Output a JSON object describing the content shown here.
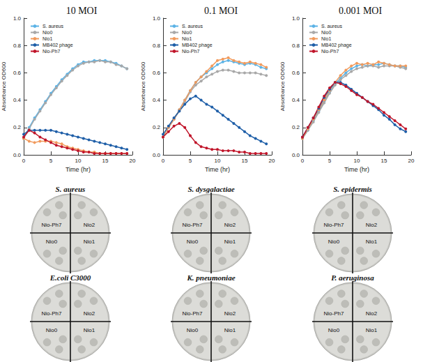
{
  "chart_data": [
    {
      "type": "line",
      "title": "10 MOI",
      "x_label": "Time (hr)",
      "y_label": "Absorbance OD600",
      "x": [
        0,
        1,
        2,
        3,
        4,
        5,
        6,
        7,
        8,
        9,
        10,
        11,
        12,
        13,
        14,
        15,
        16,
        17,
        18,
        19
      ],
      "xlim": [
        0,
        20
      ],
      "xticks": [
        0,
        5,
        10,
        15,
        20
      ],
      "ylim": [
        0,
        1
      ],
      "yticks": [
        {
          "value": 0,
          "label": "0.0"
        },
        0.2,
        0.4,
        0.6,
        0.8,
        {
          "value": 1,
          "label": "1.0"
        }
      ],
      "grid": false,
      "legend": "upper left",
      "marker": "circle",
      "series": [
        {
          "name": "S. aureus",
          "color": "#5cb3e6",
          "values": [
            0.12,
            0.2,
            0.27,
            0.33,
            0.39,
            0.45,
            0.5,
            0.55,
            0.59,
            0.63,
            0.66,
            0.68,
            0.68,
            0.69,
            0.69,
            0.69,
            0.68,
            0.67,
            0.65,
            0.63
          ]
        },
        {
          "name": "Nio0",
          "color": "#a8a8a8",
          "values": [
            0.12,
            0.19,
            0.26,
            0.32,
            0.38,
            0.44,
            0.49,
            0.54,
            0.58,
            0.62,
            0.65,
            0.67,
            0.68,
            0.68,
            0.69,
            0.68,
            0.68,
            0.66,
            0.65,
            0.63
          ]
        },
        {
          "name": "Nio1",
          "color": "#f19a5c",
          "values": [
            0.12,
            0.1,
            0.09,
            0.1,
            0.1,
            0.1,
            0.09,
            0.08,
            0.06,
            0.05,
            0.04,
            0.03,
            0.02,
            0.02,
            0.01,
            0.01,
            0.01,
            0.01,
            0.01,
            0.01
          ]
        },
        {
          "name": "MB402 phage",
          "color": "#1f5fa8",
          "values": [
            0.15,
            0.18,
            0.18,
            0.18,
            0.18,
            0.18,
            0.17,
            0.16,
            0.15,
            0.14,
            0.13,
            0.12,
            0.11,
            0.1,
            0.09,
            0.08,
            0.07,
            0.06,
            0.05,
            0.04
          ]
        },
        {
          "name": "Nio-Ph7",
          "color": "#c0152a",
          "values": [
            0.13,
            0.18,
            0.16,
            0.13,
            0.11,
            0.09,
            0.07,
            0.06,
            0.05,
            0.04,
            0.03,
            0.02,
            0.02,
            0.01,
            0.01,
            0.01,
            0.01,
            0.01,
            0.01,
            0.01
          ]
        }
      ]
    },
    {
      "type": "line",
      "title": "0.1 MOI",
      "x_label": "Time (hr)",
      "y_label": "Absorbance OD600",
      "x": [
        0,
        1,
        2,
        3,
        4,
        5,
        6,
        7,
        8,
        9,
        10,
        11,
        12,
        13,
        14,
        15,
        16,
        17,
        18,
        19
      ],
      "xlim": [
        0,
        20
      ],
      "xticks": [
        0,
        5,
        10,
        15,
        20
      ],
      "ylim": [
        0,
        1
      ],
      "yticks": [
        {
          "value": 0,
          "label": "0.0"
        },
        0.2,
        0.4,
        0.6,
        0.8,
        {
          "value": 1,
          "label": "1.0"
        }
      ],
      "grid": false,
      "legend": "upper left",
      "marker": "circle",
      "series": [
        {
          "name": "S. aureus",
          "color": "#5cb3e6",
          "values": [
            0.13,
            0.2,
            0.26,
            0.33,
            0.4,
            0.47,
            0.53,
            0.57,
            0.6,
            0.63,
            0.66,
            0.68,
            0.69,
            0.68,
            0.67,
            0.66,
            0.67,
            0.66,
            0.64,
            0.63
          ]
        },
        {
          "name": "Nio0",
          "color": "#a8a8a8",
          "values": [
            0.13,
            0.2,
            0.26,
            0.32,
            0.39,
            0.46,
            0.51,
            0.54,
            0.57,
            0.59,
            0.61,
            0.62,
            0.62,
            0.61,
            0.6,
            0.6,
            0.6,
            0.6,
            0.59,
            0.58
          ]
        },
        {
          "name": "Nio1",
          "color": "#f19a5c",
          "values": [
            0.13,
            0.2,
            0.26,
            0.33,
            0.4,
            0.47,
            0.53,
            0.57,
            0.61,
            0.65,
            0.69,
            0.7,
            0.71,
            0.69,
            0.68,
            0.67,
            0.68,
            0.67,
            0.66,
            0.64
          ]
        },
        {
          "name": "MB402 phage",
          "color": "#1f5fa8",
          "values": [
            0.15,
            0.21,
            0.27,
            0.32,
            0.37,
            0.41,
            0.43,
            0.4,
            0.37,
            0.35,
            0.32,
            0.29,
            0.26,
            0.23,
            0.2,
            0.17,
            0.14,
            0.12,
            0.1,
            0.08
          ]
        },
        {
          "name": "Nio-Ph7",
          "color": "#c0152a",
          "values": [
            0.13,
            0.17,
            0.21,
            0.23,
            0.2,
            0.14,
            0.09,
            0.06,
            0.05,
            0.04,
            0.04,
            0.03,
            0.03,
            0.03,
            0.02,
            0.02,
            0.01,
            0.01,
            0.01,
            0.01
          ]
        }
      ]
    },
    {
      "type": "line",
      "title": "0.001 MOI",
      "x_label": "Time (hr)",
      "y_label": "Absorbance OD600",
      "x": [
        0,
        1,
        2,
        3,
        4,
        5,
        6,
        7,
        8,
        9,
        10,
        11,
        12,
        13,
        14,
        15,
        16,
        17,
        18,
        19
      ],
      "xlim": [
        0,
        20
      ],
      "xticks": [
        0,
        5,
        10,
        15,
        20
      ],
      "ylim": [
        0,
        1
      ],
      "yticks": [
        {
          "value": 0,
          "label": "0.0"
        },
        0.2,
        0.4,
        0.6,
        0.8,
        {
          "value": 1,
          "label": "1.0"
        }
      ],
      "grid": false,
      "legend": "upper left",
      "marker": "circle",
      "series": [
        {
          "name": "S. aureus",
          "color": "#5cb3e6",
          "values": [
            0.12,
            0.18,
            0.25,
            0.32,
            0.39,
            0.46,
            0.52,
            0.56,
            0.6,
            0.63,
            0.65,
            0.66,
            0.65,
            0.66,
            0.66,
            0.67,
            0.66,
            0.65,
            0.65,
            0.64
          ]
        },
        {
          "name": "Nio0",
          "color": "#a8a8a8",
          "values": [
            0.12,
            0.18,
            0.24,
            0.31,
            0.38,
            0.45,
            0.51,
            0.55,
            0.58,
            0.61,
            0.63,
            0.64,
            0.65,
            0.65,
            0.64,
            0.65,
            0.65,
            0.65,
            0.64,
            0.63
          ]
        },
        {
          "name": "Nio1",
          "color": "#f19a5c",
          "values": [
            0.12,
            0.19,
            0.26,
            0.33,
            0.4,
            0.47,
            0.53,
            0.58,
            0.62,
            0.65,
            0.67,
            0.66,
            0.67,
            0.66,
            0.68,
            0.67,
            0.66,
            0.65,
            0.65,
            0.65
          ]
        },
        {
          "name": "MB402 phage",
          "color": "#1f5fa8",
          "values": [
            0.13,
            0.2,
            0.27,
            0.34,
            0.42,
            0.48,
            0.53,
            0.53,
            0.51,
            0.48,
            0.45,
            0.42,
            0.39,
            0.36,
            0.33,
            0.29,
            0.26,
            0.22,
            0.19,
            0.17
          ]
        },
        {
          "name": "Nio-Ph7",
          "color": "#c0152a",
          "values": [
            0.13,
            0.2,
            0.27,
            0.35,
            0.43,
            0.49,
            0.53,
            0.52,
            0.5,
            0.47,
            0.44,
            0.42,
            0.39,
            0.37,
            0.34,
            0.31,
            0.28,
            0.25,
            0.22,
            0.19
          ]
        }
      ]
    }
  ],
  "plates": [
    {
      "title": "S. aureus",
      "quadrants": [
        "Nio-Ph7",
        "Nio2",
        "Nio0",
        "Nio1"
      ],
      "spots": [
        3,
        3,
        3,
        3
      ]
    },
    {
      "title": "S. dysgalactiae",
      "quadrants": [
        "Nio-Ph7",
        "Nio2",
        "Nio0",
        "Nio1"
      ],
      "spots": [
        3,
        3,
        3,
        3
      ]
    },
    {
      "title": "S. epidermis",
      "quadrants": [
        "Nio-Ph7",
        "Nio2",
        "Nio0",
        "Nio1"
      ],
      "spots": [
        3,
        3,
        3,
        3
      ]
    },
    {
      "title": "E.coli C3000",
      "quadrants": [
        "Nio-Ph7",
        "Nio2",
        "Nio0",
        "Nio1"
      ],
      "spots": [
        3,
        3,
        3,
        3
      ]
    },
    {
      "title": "K. pneumoniae",
      "quadrants": [
        "Nio-Ph7",
        "Nio2",
        "Nio0",
        "Nio1"
      ],
      "spots": [
        3,
        3,
        3,
        3
      ]
    },
    {
      "title": "P. aeruginosa",
      "quadrants": [
        "Nio-Ph7",
        "Nio2",
        "Nio0",
        "Nio1"
      ],
      "spots": [
        3,
        3,
        3,
        3
      ]
    }
  ]
}
